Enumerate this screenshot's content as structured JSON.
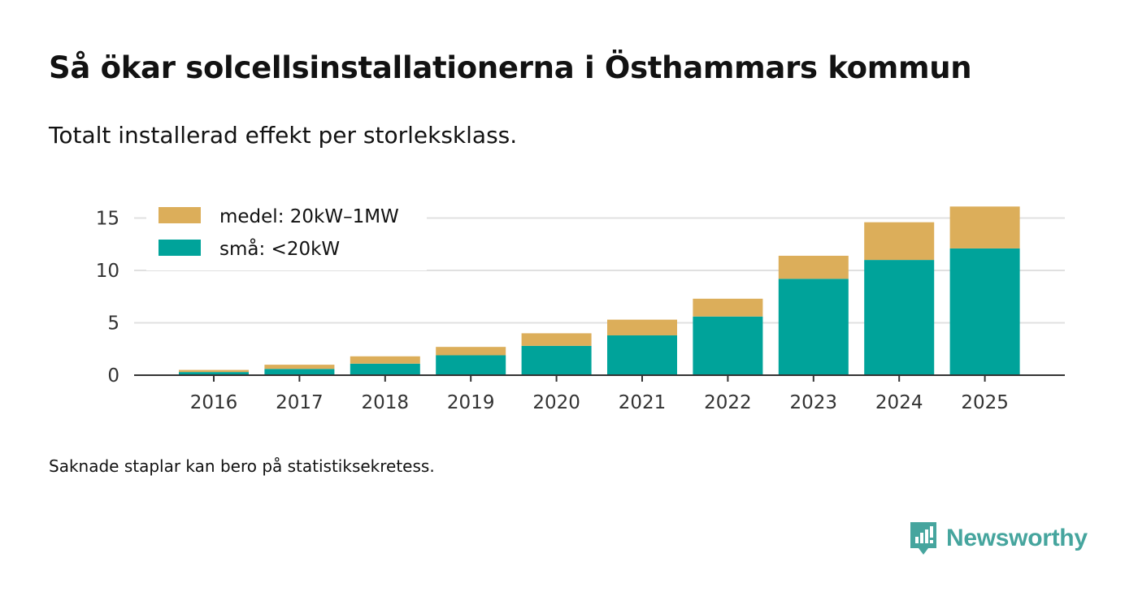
{
  "header": {
    "title": "Så ökar solcellsinstallationerna i Östhammars kommun",
    "subtitle": "Totalt installerad effekt per storleksklass."
  },
  "footer": {
    "note": "Saknade staplar kan bero på statistiksekretess.",
    "brand": "Newsworthy"
  },
  "colors": {
    "small": "#00a39a",
    "medium": "#dcae5a",
    "grid": "#e0e0e0",
    "axis": "#333333",
    "brand": "#46a59e"
  },
  "chart_data": {
    "type": "bar",
    "stacked": true,
    "title": "Så ökar solcellsinstallationerna i Östhammars kommun",
    "subtitle": "Totalt installerad effekt per storleksklass.",
    "xlabel": "",
    "ylabel": "",
    "ylim": [
      0,
      17
    ],
    "yticks": [
      0,
      5,
      10,
      15
    ],
    "grid": true,
    "legend_position": "top-left",
    "categories": [
      "2016",
      "2017",
      "2018",
      "2019",
      "2020",
      "2021",
      "2022",
      "2023",
      "2024",
      "2025"
    ],
    "series": [
      {
        "name": "små: <20kW",
        "color": "#00a39a",
        "values": [
          0.3,
          0.6,
          1.1,
          1.9,
          2.8,
          3.8,
          5.6,
          9.2,
          11.0,
          12.1
        ]
      },
      {
        "name": "medel: 20kW–1MW",
        "color": "#dcae5a",
        "values": [
          0.2,
          0.4,
          0.7,
          0.8,
          1.2,
          1.5,
          1.7,
          2.2,
          3.6,
          4.0
        ]
      }
    ]
  }
}
